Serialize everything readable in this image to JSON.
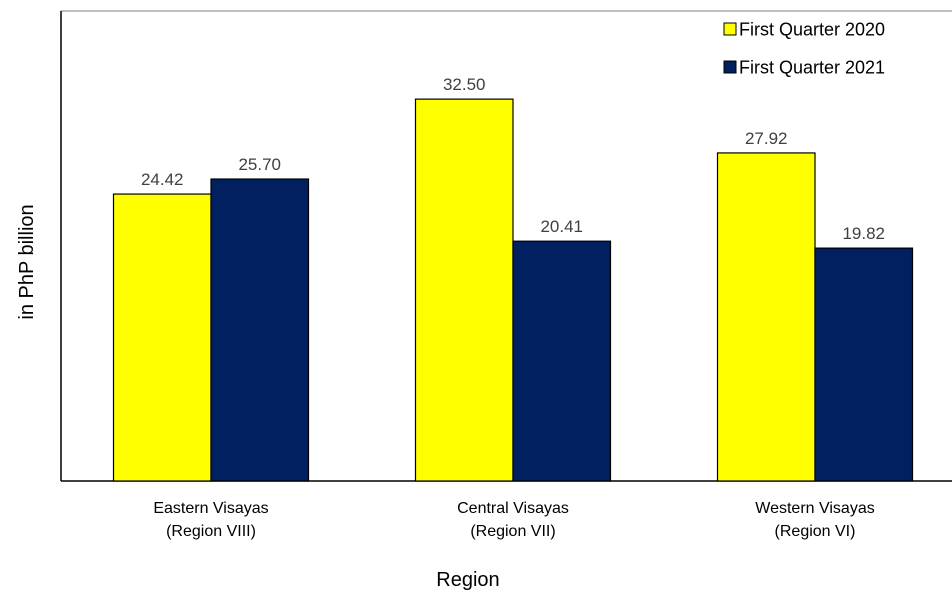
{
  "chart_data": {
    "type": "bar",
    "title": "",
    "xlabel": "Region",
    "ylabel": "in PhP billion",
    "ylim": [
      0,
      40
    ],
    "grid": false,
    "legend_position": "top-right",
    "categories": [
      [
        "Eastern Visayas",
        "(Region VIII)"
      ],
      [
        "Central Visayas",
        "(Region VII)"
      ],
      [
        "Western Visayas",
        "(Region VI)"
      ]
    ],
    "series": [
      {
        "name": "First Quarter 2020",
        "color": "#ffff00",
        "values": [
          24.42,
          32.5,
          27.92
        ]
      },
      {
        "name": "First Quarter 2021",
        "color": "#002060",
        "values": [
          25.7,
          20.41,
          19.82
        ]
      }
    ]
  }
}
